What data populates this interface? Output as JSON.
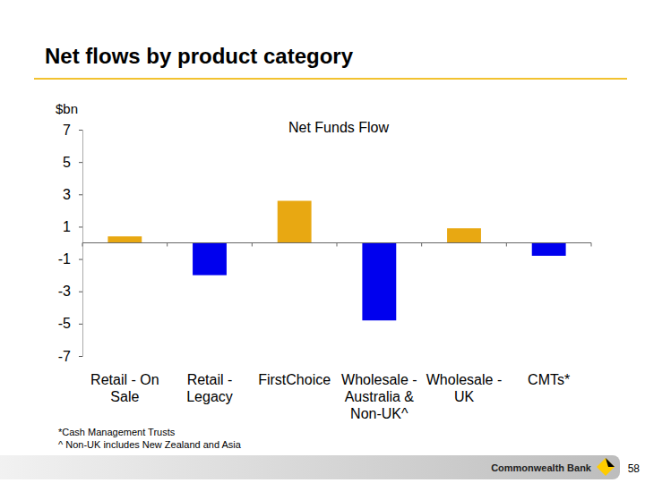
{
  "slide": {
    "title": "Net flows by product category",
    "footnotes": [
      "*Cash Management Trusts",
      "^ Non-UK includes New Zealand and Asia"
    ],
    "brand": "Commonwealth Bank",
    "page_number": 58
  },
  "chart_data": {
    "type": "bar",
    "title": "Net Funds Flow",
    "y_label": "$bn",
    "categories": [
      "Retail - On Sale",
      "Retail - Legacy",
      "FirstChoice",
      "Wholesale - Australia & Non-UK^",
      "Wholesale - UK",
      "CMTs*"
    ],
    "values": [
      0.4,
      -2.0,
      2.6,
      -4.8,
      0.9,
      -0.8
    ],
    "colors": [
      "#E8A812",
      "#0000EE",
      "#E8A812",
      "#0000EE",
      "#E8A812",
      "#0000EE"
    ],
    "ylim": [
      -7,
      7
    ],
    "yticks": [
      7,
      5,
      3,
      1,
      -1,
      -3,
      -5,
      -7
    ],
    "grid": false
  }
}
